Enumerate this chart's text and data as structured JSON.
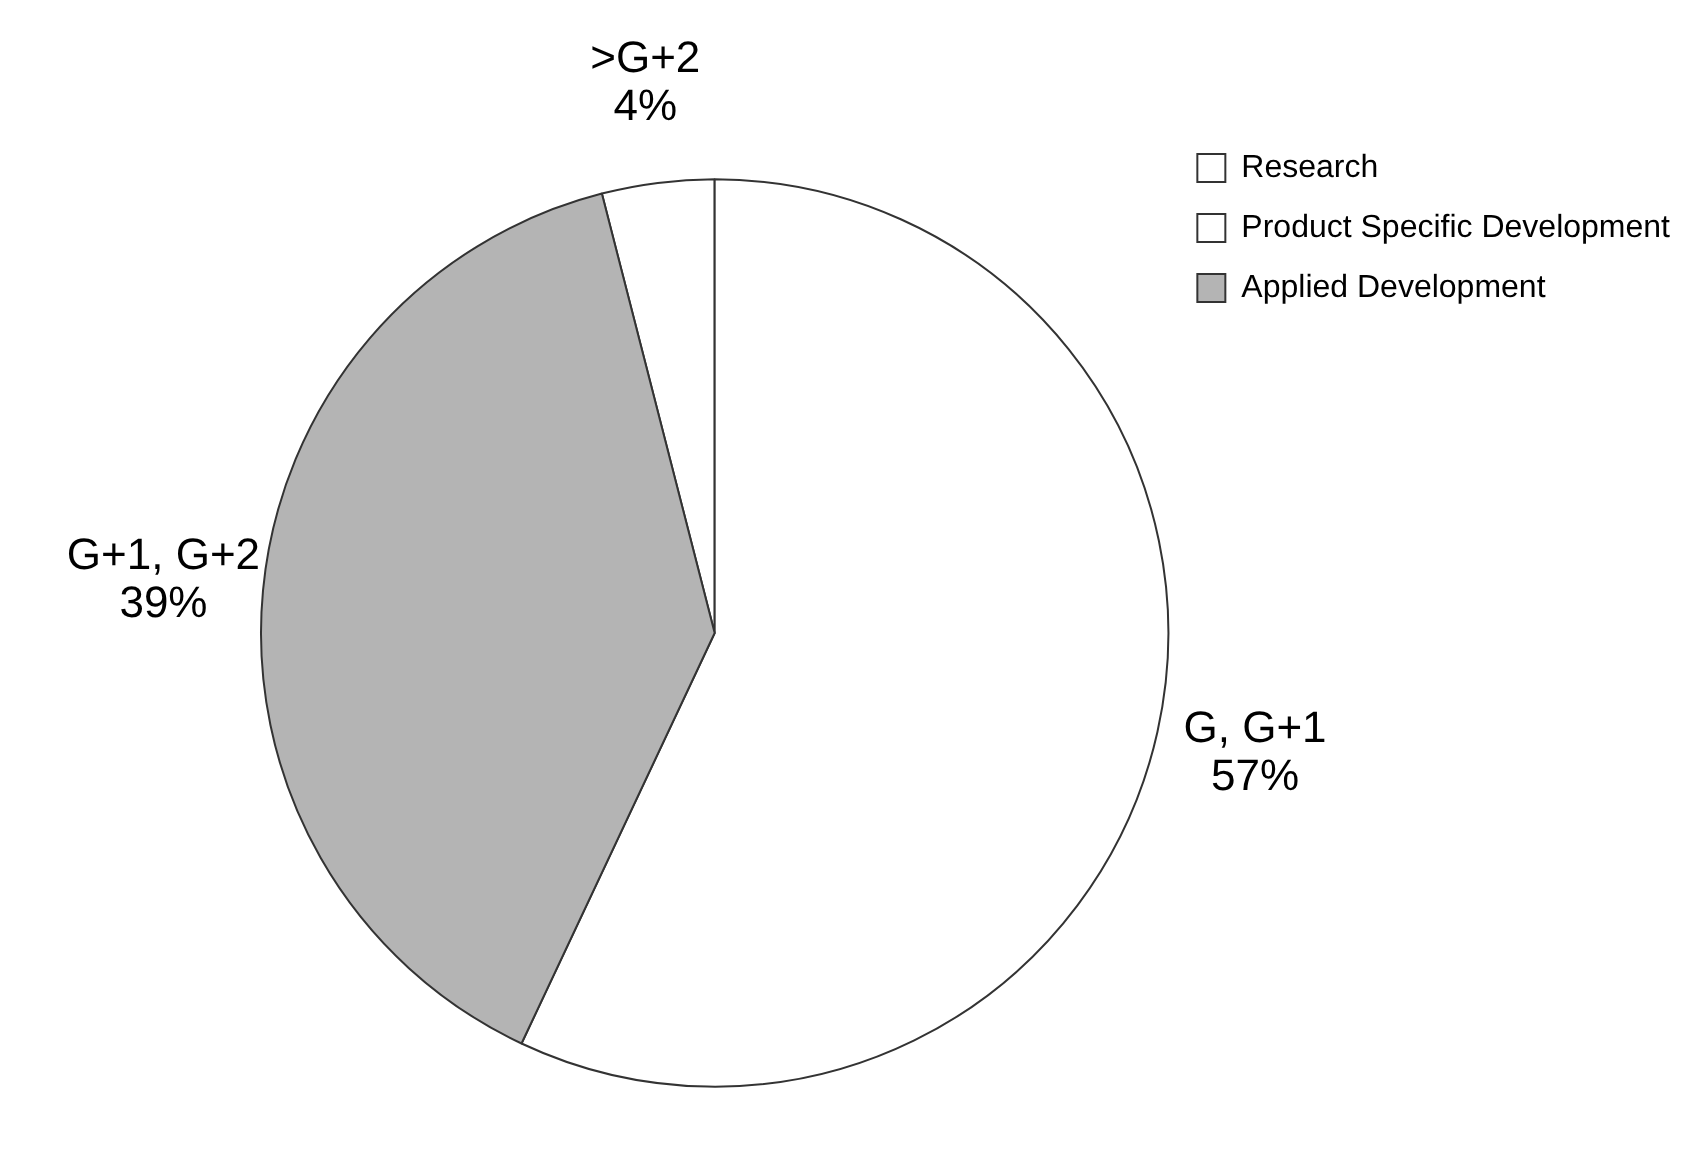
{
  "chart_data": {
    "type": "pie",
    "categories": [
      "Research",
      "Product Specific Development",
      "Applied Development"
    ],
    "values": [
      4,
      57,
      39
    ],
    "colors": [
      "#ffffff",
      "#ffffff",
      "#b4b4b4"
    ],
    "value_labels": [
      ">G+2\n4%",
      "G, G+1\n57%",
      "G+1, G+2\n39%"
    ],
    "legend": "top right"
  }
}
